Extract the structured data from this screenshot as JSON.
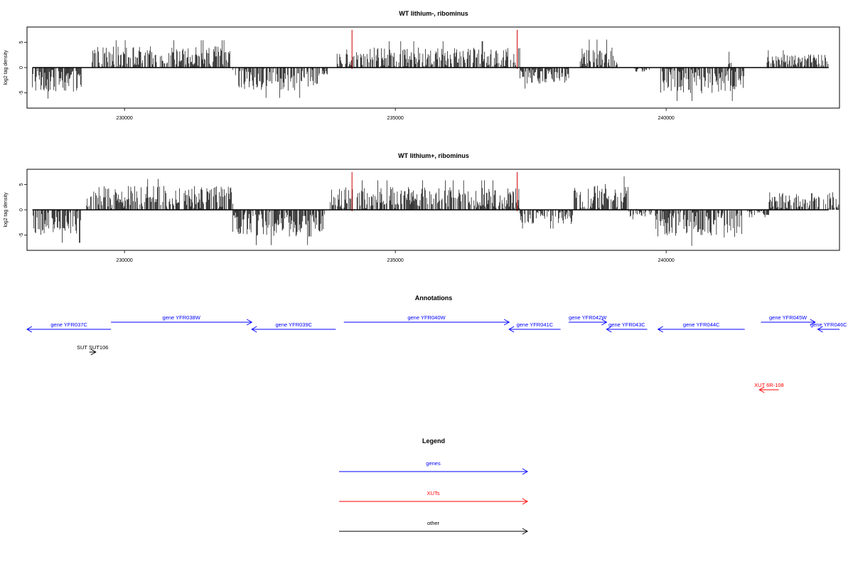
{
  "chart_data": [
    {
      "type": "bar",
      "title": "WT lithium-, ribominus",
      "ylabel": "log2 tag density",
      "xlim": [
        228200,
        243200
      ],
      "ylim": [
        -8,
        8
      ],
      "x_ticks": [
        230000,
        235000,
        240000
      ],
      "x_tick_labels": [
        "230000",
        "235000",
        "240000"
      ],
      "y_ticks": [
        -5,
        0,
        5
      ],
      "y_tick_labels": [
        "-5",
        "0",
        "5"
      ],
      "markers_x": [
        234200,
        237250
      ],
      "marker_color": "#cc0000",
      "segments": [
        {
          "x": [
            228300,
            229200
          ],
          "mean": -2.6,
          "amp": 2.2
        },
        {
          "x": [
            229400,
            231950
          ],
          "mean": 2.2,
          "amp": 2.0
        },
        {
          "x": [
            232000,
            233600
          ],
          "mean": -2.3,
          "amp": 2.3
        },
        {
          "x": [
            233650,
            233750
          ],
          "mean": -1.0,
          "amp": 0.6
        },
        {
          "x": [
            233900,
            237300
          ],
          "mean": 2.0,
          "amp": 2.0
        },
        {
          "x": [
            237300,
            238200
          ],
          "mean": -1.6,
          "amp": 1.6
        },
        {
          "x": [
            238400,
            239100
          ],
          "mean": 2.0,
          "amp": 2.2
        },
        {
          "x": [
            239400,
            239700
          ],
          "mean": -0.5,
          "amp": 0.6
        },
        {
          "x": [
            239900,
            241450
          ],
          "mean": -2.6,
          "amp": 2.5
        },
        {
          "x": [
            241150,
            241200
          ],
          "mean": 1.2,
          "amp": 1.2
        },
        {
          "x": [
            241850,
            243000
          ],
          "mean": 1.5,
          "amp": 1.2
        }
      ]
    },
    {
      "type": "bar",
      "title": "WT lithium+, ribominus",
      "ylabel": "log2 tag density",
      "xlim": [
        228200,
        243200
      ],
      "ylim": [
        -8,
        8
      ],
      "x_ticks": [
        230000,
        235000,
        240000
      ],
      "x_tick_labels": [
        "230000",
        "235000",
        "240000"
      ],
      "y_ticks": [
        -5,
        0,
        5
      ],
      "y_tick_labels": [
        "-5",
        "0",
        "5"
      ],
      "markers_x": [
        234200,
        237250
      ],
      "marker_color": "#cc0000",
      "segments": [
        {
          "x": [
            228300,
            229200
          ],
          "mean": -2.5,
          "amp": 2.5
        },
        {
          "x": [
            229300,
            232000
          ],
          "mean": 2.4,
          "amp": 2.3
        },
        {
          "x": [
            232000,
            233700
          ],
          "mean": -2.8,
          "amp": 2.6
        },
        {
          "x": [
            233800,
            237300
          ],
          "mean": 2.3,
          "amp": 2.2
        },
        {
          "x": [
            237300,
            238300
          ],
          "mean": -1.3,
          "amp": 1.5
        },
        {
          "x": [
            238300,
            239300
          ],
          "mean": 2.6,
          "amp": 2.5
        },
        {
          "x": [
            239300,
            239800
          ],
          "mean": -0.6,
          "amp": 0.8
        },
        {
          "x": [
            239800,
            241400
          ],
          "mean": -2.8,
          "amp": 2.7
        },
        {
          "x": [
            241500,
            241900
          ],
          "mean": -0.5,
          "amp": 0.6
        },
        {
          "x": [
            241900,
            243200
          ],
          "mean": 1.8,
          "amp": 1.7
        }
      ]
    }
  ],
  "annotations": {
    "title": "Annotations",
    "features": [
      {
        "label": "gene YFR037C",
        "strand": "-",
        "x": [
          228200,
          229750
        ],
        "row": 1,
        "color": "#0000ff"
      },
      {
        "label": "gene YFR038W",
        "strand": "+",
        "x": [
          229750,
          232350
        ],
        "row": 0,
        "color": "#0000ff"
      },
      {
        "label": "gene YFR039C",
        "strand": "-",
        "x": [
          232350,
          233900
        ],
        "row": 1,
        "color": "#0000ff"
      },
      {
        "label": "gene YFR040W",
        "strand": "+",
        "x": [
          234050,
          237100
        ],
        "row": 0,
        "color": "#0000ff"
      },
      {
        "label": "gene YFR041C",
        "strand": "-",
        "x": [
          237100,
          238050
        ],
        "row": 1,
        "color": "#0000ff"
      },
      {
        "label": "gene YFR042W",
        "strand": "+",
        "x": [
          238200,
          238900
        ],
        "row": 0,
        "color": "#0000ff"
      },
      {
        "label": "gene YFR043C",
        "strand": "-",
        "x": [
          238900,
          239650
        ],
        "row": 1,
        "color": "#0000ff"
      },
      {
        "label": "gene YFR044C",
        "strand": "-",
        "x": [
          239850,
          241450
        ],
        "row": 1,
        "color": "#0000ff"
      },
      {
        "label": "gene YFR045W",
        "strand": "+",
        "x": [
          241750,
          242750
        ],
        "row": 0,
        "color": "#0000ff"
      },
      {
        "label": "gene YFR046C",
        "strand": "-",
        "x": [
          242800,
          243200
        ],
        "row": 1,
        "color": "#0000ff"
      },
      {
        "label": "SUT SUT106",
        "strand": "+",
        "x": [
          229350,
          229470
        ],
        "row": 2,
        "color": "#000000"
      },
      {
        "label": "XUT 6R-108",
        "strand": "-",
        "x": [
          241720,
          242080
        ],
        "row": 3,
        "color": "#ff0000"
      }
    ]
  },
  "legend": {
    "title": "Legend",
    "items": [
      {
        "label": "genes",
        "color": "#0000ff"
      },
      {
        "label": "XUTs",
        "color": "#ff0000"
      },
      {
        "label": "other",
        "color": "#000000"
      }
    ]
  }
}
